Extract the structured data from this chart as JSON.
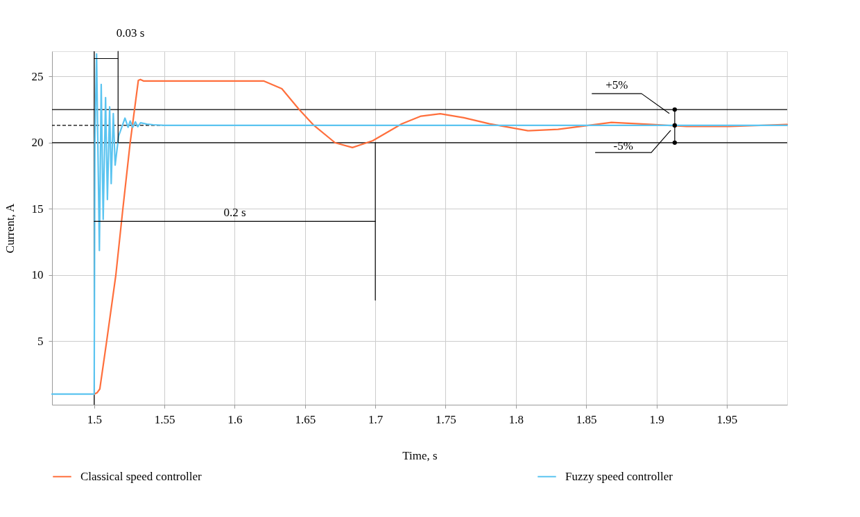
{
  "chart_data": {
    "type": "line",
    "xlabel": "Time, s",
    "ylabel": "Current, A",
    "xlim": [
      1.47,
      1.993
    ],
    "ylim": [
      0.2,
      26.9
    ],
    "xticks": [
      1.5,
      1.55,
      1.6,
      1.65,
      1.7,
      1.75,
      1.8,
      1.85,
      1.9,
      1.95
    ],
    "yticks": [
      5,
      10,
      15,
      20,
      25
    ],
    "grid": true,
    "legend": "bottom",
    "series": [
      {
        "name": "Classical speed controller",
        "color": "#ff6f3c",
        "x": [
          1.5,
          1.502,
          1.504,
          1.5088,
          1.5154,
          1.5202,
          1.5256,
          1.5314,
          1.5329,
          1.535,
          1.6205,
          1.6335,
          1.6456,
          1.6563,
          1.6714,
          1.6837,
          1.6982,
          1.7188,
          1.7325,
          1.7462,
          1.763,
          1.7812,
          1.8086,
          1.83,
          1.868,
          1.897,
          1.9214,
          1.952,
          1.993
        ],
        "values": [
          1.0,
          1.1,
          1.39,
          4.94,
          9.99,
          14.8,
          20.0,
          24.7,
          24.77,
          24.66,
          24.66,
          24.07,
          22.53,
          21.3,
          19.99,
          19.63,
          20.15,
          21.42,
          22.0,
          22.18,
          21.88,
          21.42,
          20.9,
          21.0,
          21.53,
          21.37,
          21.22,
          21.22,
          21.37
        ]
      },
      {
        "name": "Fuzzy speed controller",
        "color": "#5bc4f0",
        "x": [
          1.47,
          1.5,
          1.5005,
          1.5017,
          1.5037,
          1.505,
          1.5064,
          1.5081,
          1.5094,
          1.511,
          1.5121,
          1.5136,
          1.5149,
          1.5174,
          1.5219,
          1.5241,
          1.5256,
          1.5274,
          1.5293,
          1.531,
          1.533,
          1.5375,
          1.542,
          1.55,
          1.993
        ],
        "values": [
          1.0,
          1.0,
          20.0,
          26.7,
          11.85,
          24.4,
          14.2,
          23.4,
          15.7,
          22.7,
          16.9,
          22.2,
          18.3,
          20.5,
          21.85,
          21.16,
          21.63,
          21.16,
          21.57,
          21.2,
          21.5,
          21.4,
          21.35,
          21.3,
          21.3
        ]
      },
      {
        "color": "#000000",
        "x": [
          1.517,
          1.517
        ],
        "values": [
          26.9,
          20.0
        ]
      },
      {
        "color": "#000000",
        "x": [
          1.5,
          1.517
        ],
        "values": [
          26.35,
          26.35
        ]
      },
      {
        "color": "#000000",
        "x": [
          1.5,
          1.7
        ],
        "values": [
          14.05,
          14.05
        ]
      },
      {
        "color": "#000000",
        "x": [
          1.7,
          1.7
        ],
        "values": [
          20.0,
          8.1
        ]
      },
      {
        "color": "#000000",
        "x": [
          1.913,
          1.913,
          1.913
        ],
        "values": [
          22.5,
          21.3,
          20.0
        ],
        "marker": "circle"
      },
      {
        "color": "#000000",
        "x": [
          1.909,
          1.8894,
          1.8542
        ],
        "values": [
          22.22,
          23.7,
          23.7
        ]
      },
      {
        "color": "#000000",
        "x": [
          1.91,
          1.8963,
          1.8566
        ],
        "values": [
          20.91,
          19.25,
          19.25
        ]
      }
    ],
    "ref_lines": [
      {
        "axis": "y",
        "value": 22.5,
        "color": "#000000"
      },
      {
        "axis": "y",
        "value": 21.3,
        "color": "#000000",
        "line_style": "dashed"
      },
      {
        "axis": "y",
        "value": 20.0,
        "color": "#000000"
      },
      {
        "axis": "x",
        "value": 1.5,
        "color": "#000000"
      }
    ],
    "annotations": [
      {
        "text": "0.03 s",
        "x": 1.5085,
        "y": 26.35
      },
      {
        "text": "0.2 s",
        "x": 1.6,
        "y": 14.05
      },
      {
        "text": "+5%",
        "x": 1.8718,
        "y": 23.7
      },
      {
        "text": "-5%",
        "x": 1.8764,
        "y": 19.25
      }
    ]
  }
}
